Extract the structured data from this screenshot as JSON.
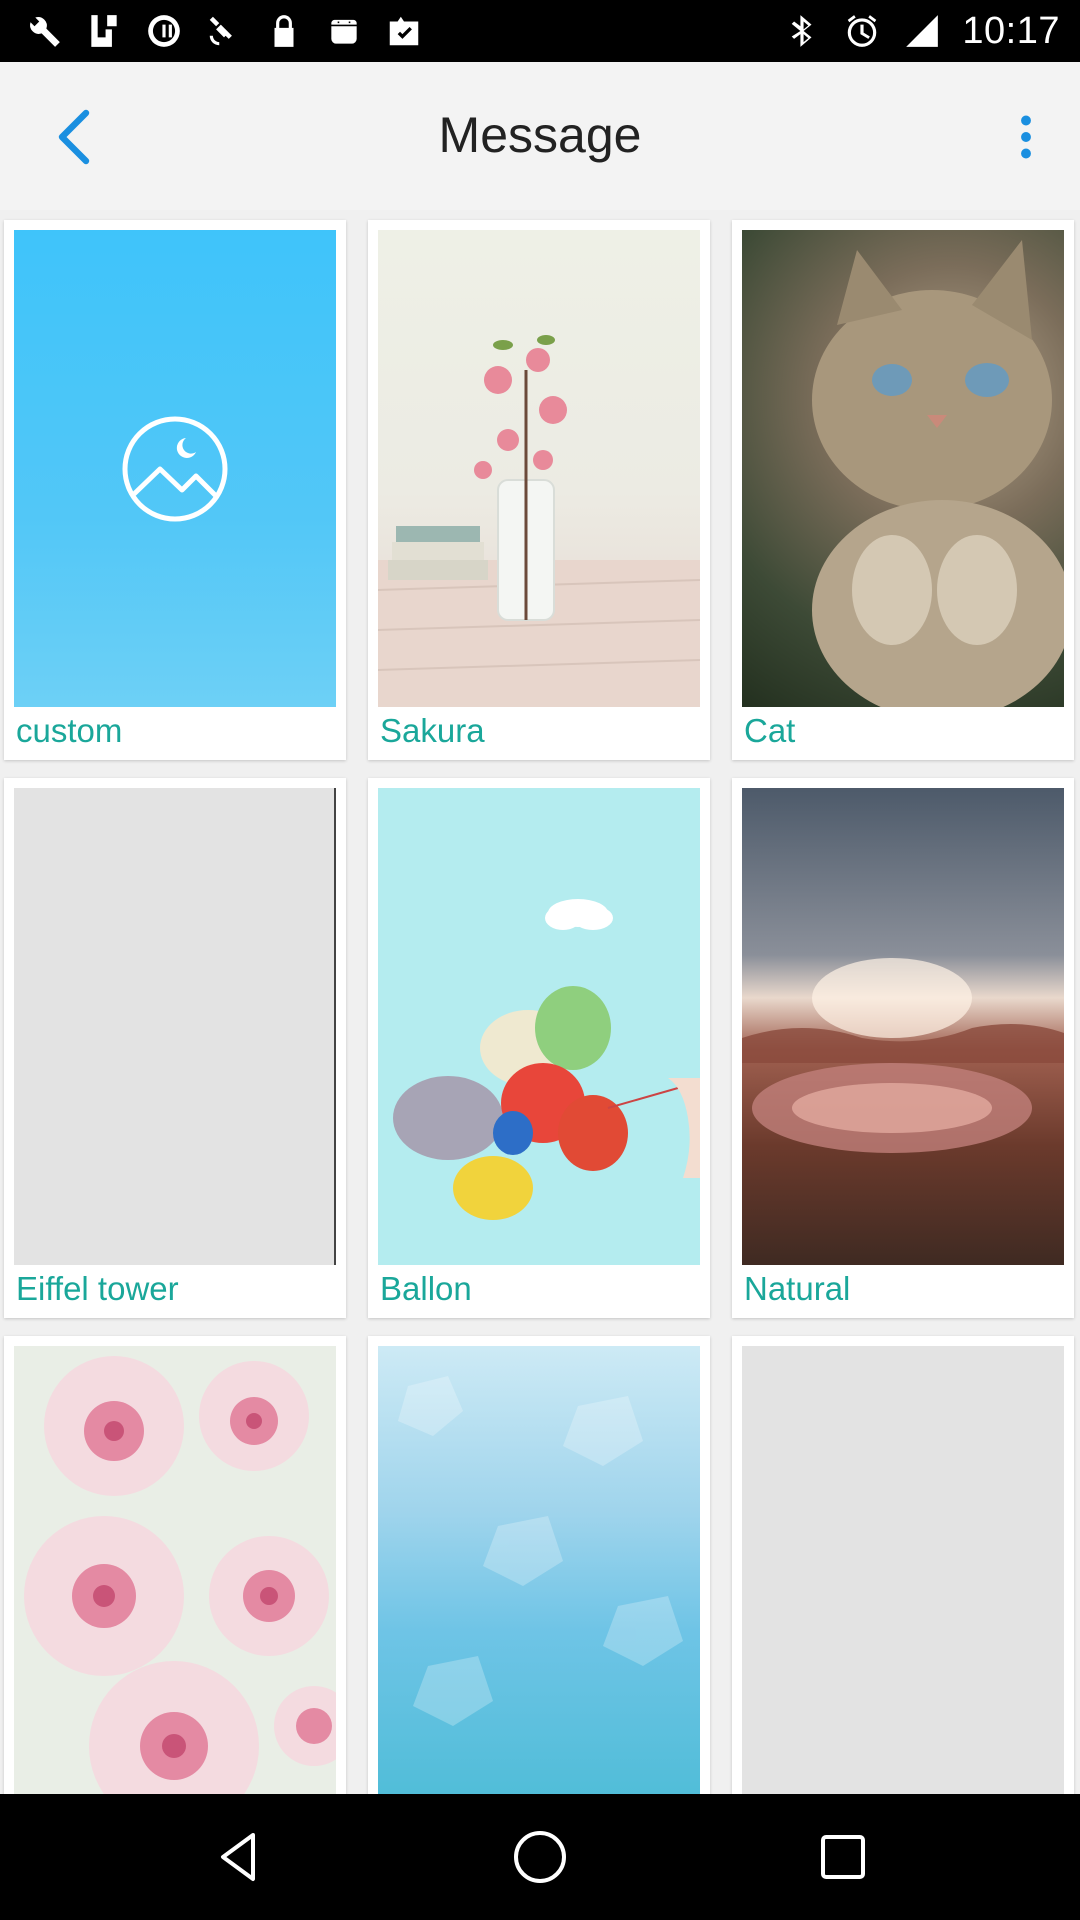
{
  "status_bar": {
    "time": "10:17",
    "left_icons": [
      "wrench-icon",
      "fake-gps-icon",
      "sync-icon",
      "satellite-icon",
      "lock-icon",
      "android-icon",
      "clipboard-check-icon"
    ],
    "right_icons": [
      "bluetooth-icon",
      "alarm-icon",
      "signal-icon"
    ]
  },
  "header": {
    "title": "Message",
    "accent_color": "#1a8fe0"
  },
  "themes": [
    {
      "label": "custom"
    },
    {
      "label": "Sakura"
    },
    {
      "label": "Cat"
    },
    {
      "label": "Eiffel tower"
    },
    {
      "label": "Ballon"
    },
    {
      "label": "Natural"
    },
    {
      "label": ""
    },
    {
      "label": ""
    },
    {
      "label": ""
    }
  ],
  "label_color": "#1aa79a"
}
